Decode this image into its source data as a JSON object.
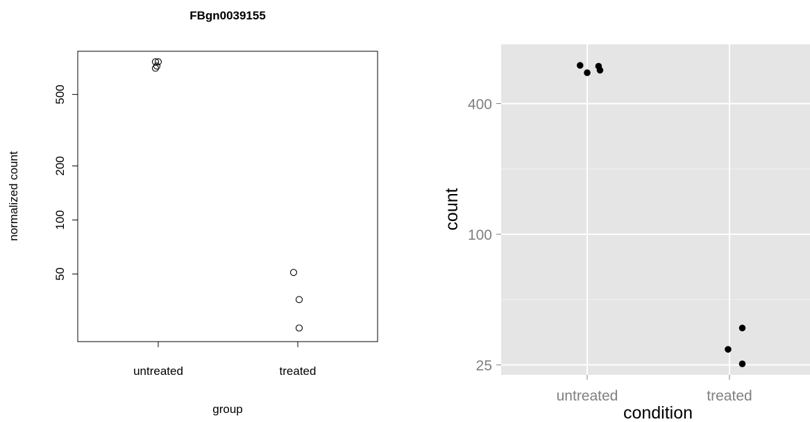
{
  "chart_data": [
    {
      "type": "scatter",
      "style": "base-r",
      "title": "FBgn0039155",
      "xlabel": "group",
      "ylabel": "normalized count",
      "y_scale": "log",
      "ylim": [
        21,
        870
      ],
      "categories": [
        "untreated",
        "treated"
      ],
      "yticks": [
        50,
        100,
        200,
        500
      ],
      "ytick_labels": [
        "50",
        "100",
        "200",
        "500"
      ],
      "marker": "open-circle",
      "points": [
        {
          "x": "untreated",
          "jitter": -0.02,
          "y": 760
        },
        {
          "x": "untreated",
          "jitter": 0.0,
          "y": 760
        },
        {
          "x": "untreated",
          "jitter": -0.01,
          "y": 720
        },
        {
          "x": "untreated",
          "jitter": -0.02,
          "y": 700
        },
        {
          "x": "treated",
          "jitter": -0.03,
          "y": 51
        },
        {
          "x": "treated",
          "jitter": 0.01,
          "y": 36
        },
        {
          "x": "treated",
          "jitter": 0.01,
          "y": 25
        }
      ]
    },
    {
      "type": "scatter",
      "style": "ggplot2",
      "title": "",
      "xlabel": "condition",
      "ylabel": "count",
      "y_scale": "log",
      "ylim": [
        22.5,
        750
      ],
      "categories": [
        "untreated",
        "treated"
      ],
      "yticks": [
        25,
        100,
        400
      ],
      "ytick_labels": [
        "25",
        "100",
        "400"
      ],
      "y_minor_ticks": [
        50,
        200
      ],
      "grid": true,
      "panel_color": "#e5e5e5",
      "grid_color": "#ffffff",
      "marker": "filled-circle",
      "points": [
        {
          "x": "untreated",
          "jitter": -0.05,
          "y": 600
        },
        {
          "x": "untreated",
          "jitter": 0.0,
          "y": 555
        },
        {
          "x": "untreated",
          "jitter": 0.08,
          "y": 595
        },
        {
          "x": "untreated",
          "jitter": 0.09,
          "y": 570
        },
        {
          "x": "treated",
          "jitter": 0.09,
          "y": 37
        },
        {
          "x": "treated",
          "jitter": -0.01,
          "y": 29.5
        },
        {
          "x": "treated",
          "jitter": 0.09,
          "y": 25.3
        }
      ]
    }
  ]
}
